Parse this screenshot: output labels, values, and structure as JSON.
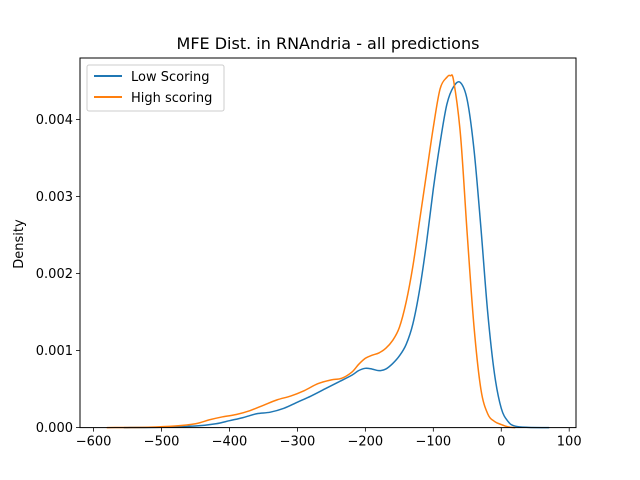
{
  "chart_data": {
    "type": "line",
    "title": "MFE Dist. in RNAndria - all predictions",
    "xlabel": "",
    "ylabel": "Density",
    "xlim": [
      -620,
      110
    ],
    "ylim": [
      0,
      0.0048
    ],
    "xticks": [
      -600,
      -500,
      -400,
      -300,
      -200,
      -100,
      0,
      100
    ],
    "xtick_labels": [
      "−600",
      "−500",
      "−400",
      "−300",
      "−200",
      "−100",
      "0",
      "100"
    ],
    "yticks": [
      0,
      0.001,
      0.002,
      0.003,
      0.004
    ],
    "ytick_labels": [
      "0.000",
      "0.001",
      "0.002",
      "0.003",
      "0.004"
    ],
    "grid": false,
    "legend_position": "top-left",
    "series": [
      {
        "name": "Low Scoring",
        "color": "#1f77b4",
        "points": [
          [
            -555,
            0.0
          ],
          [
            -500,
            5e-06
          ],
          [
            -450,
            2e-05
          ],
          [
            -420,
            5e-05
          ],
          [
            -400,
            9e-05
          ],
          [
            -380,
            0.00013
          ],
          [
            -360,
            0.00018
          ],
          [
            -340,
            0.0002
          ],
          [
            -320,
            0.00025
          ],
          [
            -300,
            0.00033
          ],
          [
            -280,
            0.00041
          ],
          [
            -260,
            0.0005
          ],
          [
            -240,
            0.00059
          ],
          [
            -220,
            0.00068
          ],
          [
            -210,
            0.00074
          ],
          [
            -200,
            0.00077
          ],
          [
            -190,
            0.00076
          ],
          [
            -180,
            0.00074
          ],
          [
            -170,
            0.00076
          ],
          [
            -160,
            0.00083
          ],
          [
            -150,
            0.00093
          ],
          [
            -140,
            0.00108
          ],
          [
            -130,
            0.00135
          ],
          [
            -120,
            0.0018
          ],
          [
            -110,
            0.0024
          ],
          [
            -100,
            0.0031
          ],
          [
            -90,
            0.0037
          ],
          [
            -80,
            0.0042
          ],
          [
            -70,
            0.00443
          ],
          [
            -60,
            0.00448
          ],
          [
            -50,
            0.00425
          ],
          [
            -40,
            0.0036
          ],
          [
            -30,
            0.0026
          ],
          [
            -20,
            0.0015
          ],
          [
            -10,
            0.0007
          ],
          [
            0,
            0.00025
          ],
          [
            10,
            8e-05
          ],
          [
            20,
            2e-05
          ],
          [
            40,
            3e-06
          ],
          [
            70,
            0.0
          ]
        ]
      },
      {
        "name": "High scoring",
        "color": "#ff7f0e",
        "points": [
          [
            -580,
            0.0
          ],
          [
            -520,
            5e-06
          ],
          [
            -480,
            2e-05
          ],
          [
            -450,
            5e-05
          ],
          [
            -430,
            0.0001
          ],
          [
            -410,
            0.00014
          ],
          [
            -390,
            0.00017
          ],
          [
            -370,
            0.00022
          ],
          [
            -350,
            0.00029
          ],
          [
            -330,
            0.00036
          ],
          [
            -310,
            0.00041
          ],
          [
            -290,
            0.00048
          ],
          [
            -270,
            0.00057
          ],
          [
            -250,
            0.00062
          ],
          [
            -235,
            0.00064
          ],
          [
            -220,
            0.00072
          ],
          [
            -210,
            0.00082
          ],
          [
            -200,
            0.0009
          ],
          [
            -190,
            0.00094
          ],
          [
            -180,
            0.00097
          ],
          [
            -170,
            0.00103
          ],
          [
            -160,
            0.00113
          ],
          [
            -150,
            0.0013
          ],
          [
            -140,
            0.00163
          ],
          [
            -130,
            0.0021
          ],
          [
            -120,
            0.0027
          ],
          [
            -110,
            0.0033
          ],
          [
            -100,
            0.0039
          ],
          [
            -90,
            0.0044
          ],
          [
            -80,
            0.00455
          ],
          [
            -75,
            0.00457
          ],
          [
            -70,
            0.0045
          ],
          [
            -60,
            0.0038
          ],
          [
            -50,
            0.0025
          ],
          [
            -40,
            0.0013
          ],
          [
            -30,
            0.0005
          ],
          [
            -20,
            0.00018
          ],
          [
            -10,
            8e-05
          ],
          [
            0,
            4e-05
          ],
          [
            10,
            1e-05
          ],
          [
            20,
            0.0
          ]
        ]
      }
    ]
  }
}
